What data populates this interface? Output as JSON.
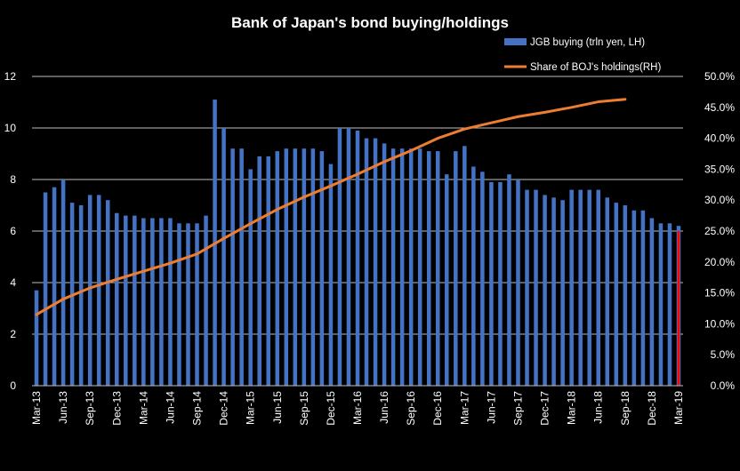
{
  "colors": {
    "background": "#000000",
    "bar": "#4472C4",
    "line": "#ED7D31",
    "gridline": "#bfbfbf",
    "marker": "#ff0000",
    "text": "#ffffff"
  },
  "chart_data": {
    "type": "bar+line",
    "title": "Bank of Japan's bond buying/holdings",
    "left_axis": {
      "ylim": [
        0,
        12
      ],
      "ticks": [
        0,
        2,
        4,
        6,
        8,
        10,
        12
      ]
    },
    "right_axis": {
      "ylim": [
        0,
        50
      ],
      "ticks": [
        "0.0%",
        "5.0%",
        "10.0%",
        "15.0%",
        "20.0%",
        "25.0%",
        "30.0%",
        "35.0%",
        "40.0%",
        "45.0%",
        "50.0%"
      ]
    },
    "x_tick_labels": [
      "Mar-13",
      "Jun-13",
      "Sep-13",
      "Dec-13",
      "Mar-14",
      "Jun-14",
      "Sep-14",
      "Dec-14",
      "Mar-15",
      "Jun-15",
      "Sep-15",
      "Dec-15",
      "Mar-16",
      "Jun-16",
      "Sep-16",
      "Dec-16",
      "Mar-17",
      "Jun-17",
      "Sep-17",
      "Dec-17",
      "Mar-18",
      "Jun-18",
      "Sep-18",
      "Dec-18",
      "Mar-19"
    ],
    "legend": {
      "bar_label": "JGB buying (trln yen, LH)",
      "line_label": "Share of BOJ's holdings(RH)"
    },
    "series": [
      {
        "name": "JGB buying (trln yen, LH)",
        "type": "bar",
        "axis": "left",
        "values": [
          3.7,
          7.5,
          7.7,
          8.0,
          7.1,
          7.0,
          7.4,
          7.4,
          7.2,
          6.7,
          6.6,
          6.6,
          6.5,
          6.5,
          6.5,
          6.5,
          6.3,
          6.3,
          6.3,
          6.6,
          11.1,
          10.0,
          9.2,
          9.2,
          8.4,
          8.9,
          8.9,
          9.1,
          9.2,
          9.2,
          9.2,
          9.2,
          9.1,
          8.6,
          10.0,
          10.0,
          9.9,
          9.6,
          9.6,
          9.4,
          9.2,
          9.2,
          9.2,
          9.2,
          9.1,
          9.1,
          8.2,
          9.1,
          9.3,
          8.5,
          8.3,
          7.9,
          7.9,
          8.2,
          8.0,
          7.6,
          7.6,
          7.4,
          7.3,
          7.2,
          7.6,
          7.6,
          7.6,
          7.6,
          7.3,
          7.1,
          7.0,
          6.8,
          6.8,
          6.5,
          6.3,
          6.3,
          6.2
        ]
      },
      {
        "name": "Share of BOJ's holdings(RH)",
        "type": "line",
        "axis": "right",
        "x": [
          0,
          3,
          6,
          9,
          12,
          15,
          18,
          21,
          24,
          27,
          30,
          33,
          36,
          39,
          42,
          45,
          48,
          51,
          54,
          57,
          60,
          63,
          66,
          69,
          72
        ],
        "values": [
          11.5,
          14.0,
          15.8,
          17.2,
          18.5,
          19.8,
          21.3,
          23.8,
          26.2,
          28.5,
          30.5,
          32.3,
          34.2,
          36.2,
          38.0,
          40.0,
          41.5,
          42.5,
          43.5,
          44.2,
          45.0,
          45.9,
          46.3,
          null,
          null
        ]
      }
    ],
    "marker_line": {
      "x": 72,
      "value": 6.0
    }
  }
}
